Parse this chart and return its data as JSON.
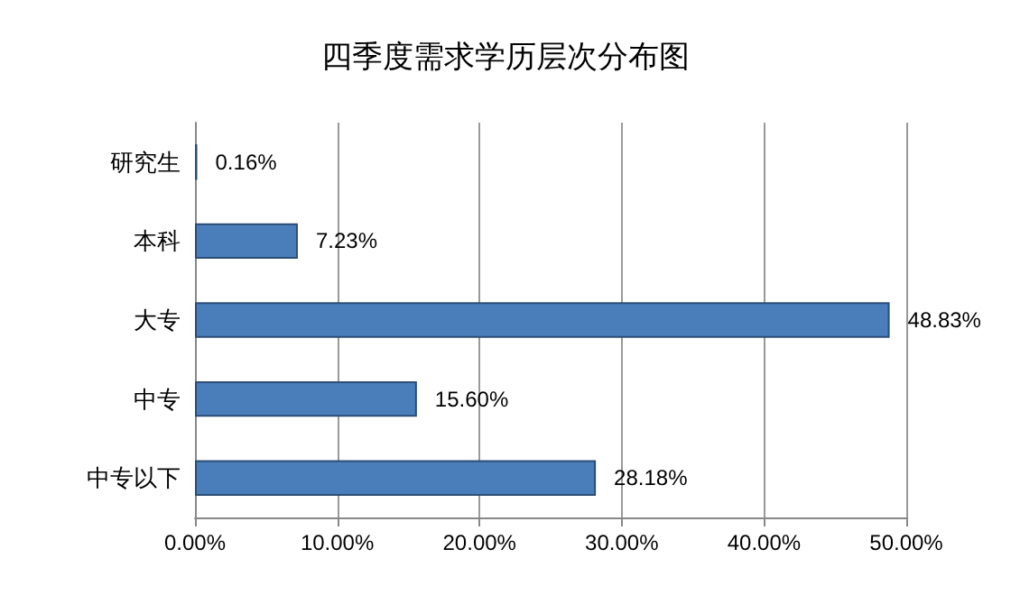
{
  "chart_data": {
    "type": "bar",
    "orientation": "horizontal",
    "title": "四季度需求学历层次分布图",
    "categories": [
      "研究生",
      "本科",
      "大专",
      "中专",
      "中专以下"
    ],
    "values": [
      0.16,
      7.23,
      48.83,
      15.6,
      28.18
    ],
    "value_labels": [
      "0.16%",
      "7.23%",
      "48.83%",
      "15.60%",
      "28.18%"
    ],
    "color": "#4a7ebb",
    "xlim": [
      0,
      50
    ],
    "xticks": [
      {
        "value": 0,
        "label": "0.00%"
      },
      {
        "value": 10,
        "label": "10.00%"
      },
      {
        "value": 20,
        "label": "20.00%"
      },
      {
        "value": 30,
        "label": "30.00%"
      },
      {
        "value": 40,
        "label": "40.00%"
      },
      {
        "value": 50,
        "label": "50.00%"
      }
    ],
    "grid": "x"
  }
}
